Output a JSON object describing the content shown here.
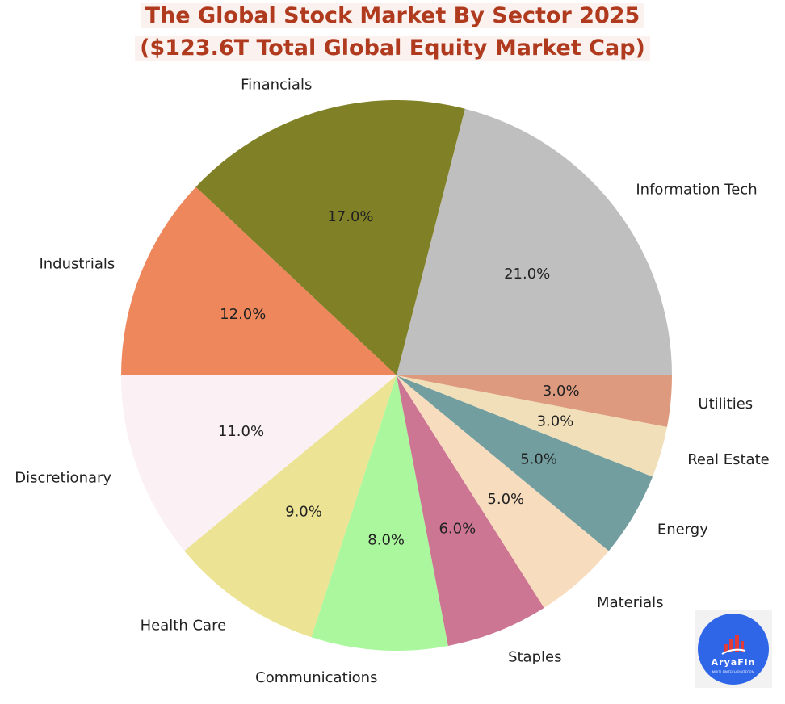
{
  "title_line1": "The Global Stock Market By Sector 2025",
  "title_line2": "($123.6T Total Global Equity Market Cap)",
  "logo": {
    "name": "AryaFin",
    "tagline": "MULTI FINTECH PLATFORM",
    "icon": "bar-chart-icon"
  },
  "chart_data": {
    "type": "pie",
    "title": "The Global Stock Market By Sector 2025 ($123.6T Total Global Equity Market Cap)",
    "start_angle_deg": 0,
    "direction": "counterclockwise",
    "slices": [
      {
        "label": "Information Tech",
        "value": 21.0,
        "pct_label": "21.0%",
        "color": "#bfbfbf"
      },
      {
        "label": "Financials",
        "value": 17.0,
        "pct_label": "17.0%",
        "color": "#808026"
      },
      {
        "label": "Industrials",
        "value": 12.0,
        "pct_label": "12.0%",
        "color": "#ee875b"
      },
      {
        "label": "Discretionary",
        "value": 11.0,
        "pct_label": "11.0%",
        "color": "#fbf0f3"
      },
      {
        "label": "Health Care",
        "value": 9.0,
        "pct_label": "9.0%",
        "color": "#ece494"
      },
      {
        "label": "Communications",
        "value": 8.0,
        "pct_label": "8.0%",
        "color": "#aaf79e"
      },
      {
        "label": "Staples",
        "value": 6.0,
        "pct_label": "6.0%",
        "color": "#cd7694"
      },
      {
        "label": "Materials",
        "value": 5.0,
        "pct_label": "5.0%",
        "color": "#f8dcbe"
      },
      {
        "label": "Energy",
        "value": 5.0,
        "pct_label": "5.0%",
        "color": "#729ea0"
      },
      {
        "label": "Real Estate",
        "value": 3.0,
        "pct_label": "3.0%",
        "color": "#f0dfb8"
      },
      {
        "label": "Utilities",
        "value": 3.0,
        "pct_label": "3.0%",
        "color": "#de9a7f"
      }
    ]
  }
}
